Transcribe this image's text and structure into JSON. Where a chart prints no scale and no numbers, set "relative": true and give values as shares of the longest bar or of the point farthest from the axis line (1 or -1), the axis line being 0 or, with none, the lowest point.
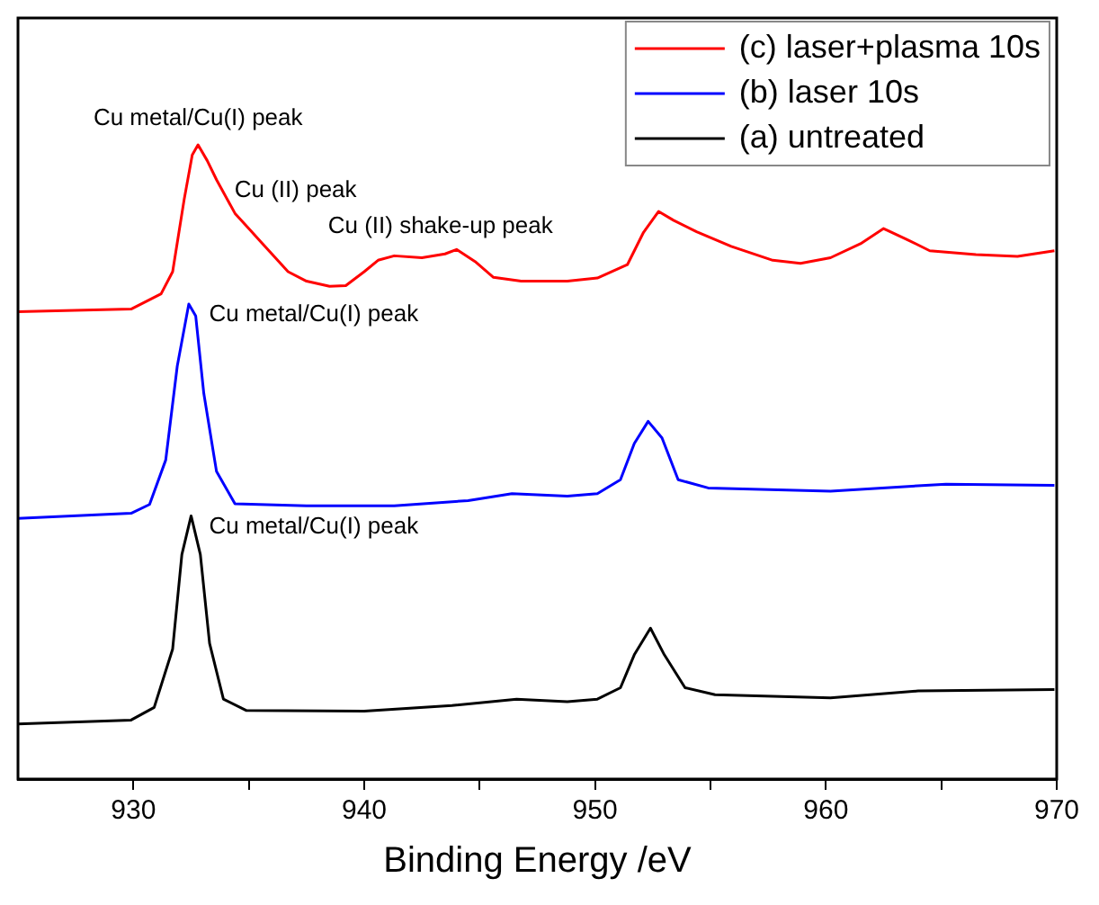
{
  "chart_data": {
    "type": "line",
    "relative": true,
    "xlabel": "Binding Energy /eV",
    "xlim": [
      925,
      970
    ],
    "xticks": [
      930,
      {
        "value": 935,
        "label": null
      },
      940,
      {
        "value": 945,
        "label": null
      },
      950,
      {
        "value": 955,
        "label": null
      },
      960,
      {
        "value": 965,
        "label": null
      },
      970
    ],
    "legend": "top right",
    "marker": "none",
    "line_style": "solid",
    "series": [
      {
        "name": "(c) laser+plasma 10s",
        "color": "#ff0000",
        "x": [
          925,
          929.9,
          931.2,
          931.7,
          932.2,
          932.55,
          932.8,
          933.2,
          933.6,
          934.4,
          935.5,
          936.7,
          937.5,
          938.5,
          939.2,
          940,
          940.6,
          941.3,
          942.5,
          943.5,
          944,
          944.8,
          945.6,
          946.8,
          948.8,
          950.1,
          951.4,
          952.1,
          952.75,
          953.4,
          954.4,
          955.9,
          957.7,
          958.9,
          960.2,
          961.5,
          962.5,
          963.5,
          964.5,
          966.5,
          968.3,
          969.9
        ],
        "values": [
          0.737,
          0.741,
          0.765,
          0.8,
          0.914,
          0.984,
          1.0,
          0.975,
          0.945,
          0.892,
          0.848,
          0.8,
          0.785,
          0.777,
          0.778,
          0.8,
          0.818,
          0.825,
          0.822,
          0.828,
          0.835,
          0.816,
          0.791,
          0.785,
          0.785,
          0.79,
          0.811,
          0.862,
          0.895,
          0.881,
          0.863,
          0.84,
          0.818,
          0.813,
          0.822,
          0.844,
          0.868,
          0.851,
          0.833,
          0.827,
          0.824,
          0.833
        ]
      },
      {
        "name": "(b) laser 10s",
        "color": "#0000ff",
        "x": [
          925,
          929.9,
          930.7,
          931.4,
          931.9,
          932.4,
          932.7,
          933.05,
          933.6,
          934.4,
          937.5,
          941.3,
          944.5,
          946.4,
          948.8,
          950.1,
          951.1,
          951.7,
          952.3,
          952.9,
          953.6,
          954.9,
          960.2,
          965.2,
          969.9
        ],
        "values": [
          0.411,
          0.419,
          0.433,
          0.503,
          0.651,
          0.749,
          0.73,
          0.608,
          0.485,
          0.434,
          0.431,
          0.431,
          0.439,
          0.45,
          0.446,
          0.45,
          0.472,
          0.529,
          0.564,
          0.538,
          0.472,
          0.459,
          0.454,
          0.465,
          0.463
        ]
      },
      {
        "name": "(a) untreated",
        "color": "#000000",
        "x": [
          925,
          929.9,
          930.9,
          931.7,
          932.1,
          932.5,
          932.9,
          933.3,
          933.9,
          934.9,
          940,
          943.8,
          946.6,
          948.8,
          950.1,
          951.1,
          951.7,
          952.4,
          953,
          953.9,
          955.2,
          960.2,
          964,
          969.9
        ],
        "values": [
          0.087,
          0.093,
          0.113,
          0.205,
          0.354,
          0.415,
          0.354,
          0.214,
          0.126,
          0.108,
          0.107,
          0.116,
          0.126,
          0.122,
          0.126,
          0.144,
          0.196,
          0.238,
          0.196,
          0.144,
          0.133,
          0.128,
          0.139,
          0.141
        ]
      }
    ],
    "annotations": [
      {
        "text": "Cu metal/Cu(I) peak",
        "x": 932.8,
        "y": 1.0
      },
      {
        "text": "Cu (II) peak",
        "x": 933.6,
        "y": 0.945
      },
      {
        "text": "Cu (II) shake-up peak",
        "x": 943.3,
        "y": 0.83
      },
      {
        "text": "Cu metal/Cu(I) peak",
        "x": 932.5,
        "y": 0.749
      },
      {
        "text": "Cu metal/Cu(I) peak",
        "x": 932.5,
        "y": 0.415
      }
    ]
  }
}
